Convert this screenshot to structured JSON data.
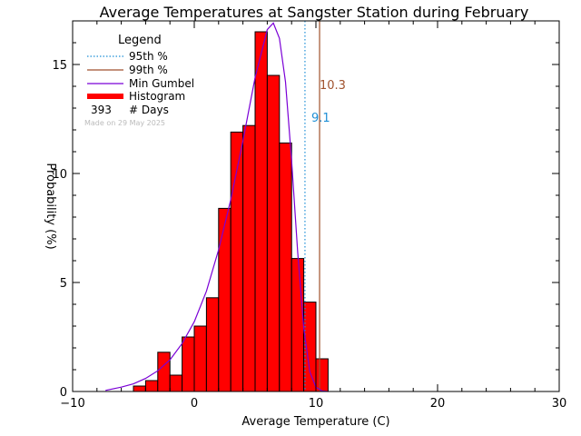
{
  "chart_data": {
    "type": "bar",
    "title": "Average Temperatures at Sangster Station during February",
    "xlabel": "Average Temperature (C)",
    "ylabel": "Probability (%)",
    "xlim": [
      -10,
      30
    ],
    "ylim": [
      0,
      17
    ],
    "x_ticks": [
      "−10",
      "0",
      "10",
      "20",
      "30"
    ],
    "x_tick_values": [
      -10,
      0,
      10,
      20,
      30
    ],
    "y_ticks": [
      "0",
      "5",
      "10",
      "15"
    ],
    "y_tick_values": [
      0,
      5,
      10,
      15
    ],
    "bin_width": 1,
    "bin_starts": [
      -5,
      -4,
      -3,
      -2,
      -1,
      0,
      1,
      2,
      3,
      4,
      5,
      6,
      7,
      8,
      9,
      10
    ],
    "values": [
      0.25,
      0.5,
      1.8,
      0.75,
      2.5,
      3.0,
      4.3,
      8.4,
      11.9,
      12.2,
      16.5,
      14.5,
      11.4,
      6.1,
      4.1,
      1.5
    ],
    "gumbel_curve": {
      "x": [
        -7.3,
        -6,
        -5,
        -4,
        -3,
        -2,
        -1,
        0,
        1,
        2,
        3,
        4,
        5,
        6,
        6.5,
        7,
        7.5,
        8,
        8.5,
        9,
        9.5,
        10,
        10.5,
        11
      ],
      "y": [
        0.05,
        0.2,
        0.35,
        0.6,
        0.95,
        1.45,
        2.2,
        3.2,
        4.6,
        6.5,
        8.8,
        11.5,
        14.4,
        16.6,
        16.9,
        16.2,
        14.2,
        10.6,
        6.4,
        2.9,
        0.9,
        0.2,
        0.03,
        0.0
      ]
    },
    "p95": 9.1,
    "p99": 10.3,
    "p95_label": "9.1",
    "p99_label": "10.3",
    "colors": {
      "histogram": "#ff0000",
      "gumbel": "#7a00d6",
      "p95": "#1e8fd6",
      "p99": "#a0522d",
      "axis": "#000000",
      "watermark": "#bbbbbb"
    },
    "legend": {
      "title": "Legend",
      "placement": "top-left",
      "items": [
        {
          "label": "95th %",
          "style": "dotted",
          "color": "#1e8fd6"
        },
        {
          "label": "99th %",
          "style": "line",
          "color": "#a0522d"
        },
        {
          "label": "Min Gumbel",
          "style": "line",
          "color": "#7a00d6"
        },
        {
          "label": "Histogram",
          "style": "thick",
          "color": "#ff0000"
        }
      ],
      "days_count": "393",
      "days_label": "# Days",
      "made_on": "Made on 29 May 2025"
    }
  }
}
